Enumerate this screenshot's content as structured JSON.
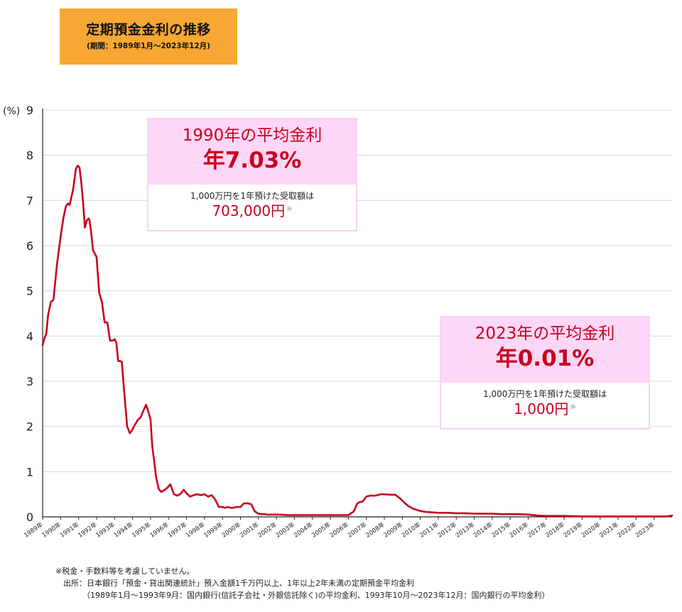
{
  "title": {
    "main": "定期預金金利の推移",
    "sub": "(期間：1989年1月～2023年12月)"
  },
  "callouts": [
    {
      "heading1": "1990年の平均金利",
      "heading2": "年7.03%",
      "line1": "1,000万円を1年預けた受取額は",
      "amount": "703,000円",
      "mark": "※"
    },
    {
      "heading1": "2023年の平均金利",
      "heading2": "年0.01%",
      "line1": "1,000万円を1年預けた受取額は",
      "amount": "1,000円",
      "mark": "※"
    }
  ],
  "footnotes": {
    "note": "※税金・手数料等を考慮していません。",
    "source": "出所：日本銀行「預金・貸出関連統計」預入金額1千万円以上、1年以上2年未満の定期預金平均金利",
    "source_detail": "（1989年1月～1993年9月：国内銀行(信託子会社・外銀信託除く)の平均金利、1993年10月～2023年12月：国内銀行の平均金利）"
  },
  "colors": {
    "line": "#c8001e",
    "title_bg": "#f7a733",
    "callout_bg": "#fdd7f7",
    "callout_text": "#c8001e"
  },
  "chart_data": {
    "type": "line",
    "ylabel": "(%)",
    "ylim": [
      0,
      9
    ],
    "yticks": [
      0,
      1,
      2,
      3,
      4,
      5,
      6,
      7,
      8,
      9
    ],
    "xlim": [
      1989.0,
      2024.0
    ],
    "x_tick_labels": [
      "1989年",
      "1990年",
      "1991年",
      "1992年",
      "1993年",
      "1994年",
      "1995年",
      "1996年",
      "1997年",
      "1998年",
      "1999年",
      "2000年",
      "2001年",
      "2002年",
      "2003年",
      "2004年",
      "2005年",
      "2006年",
      "2007年",
      "2008年",
      "2009年",
      "2010年",
      "2011年",
      "2012年",
      "2013年",
      "2014年",
      "2015年",
      "2016年",
      "2017年",
      "2018年",
      "2019年",
      "2020年",
      "2021年",
      "2022年",
      "2023年"
    ],
    "grid": "horizontal",
    "series": [
      {
        "x": [
          1989.0,
          1989.1,
          1989.2,
          1989.3,
          1989.45,
          1989.6,
          1989.8,
          1990.0,
          1990.15,
          1990.3,
          1990.42,
          1990.5,
          1990.7,
          1990.85,
          1990.95,
          1991.05,
          1991.15,
          1991.25,
          1991.35,
          1991.45,
          1991.55,
          1991.6,
          1991.7,
          1991.8,
          1992.0,
          1992.15,
          1992.3,
          1992.45,
          1992.6,
          1992.75,
          1992.9,
          1993.0,
          1993.1,
          1993.2,
          1993.3,
          1993.4,
          1993.55,
          1993.7,
          1993.85,
          1993.95,
          1994.05,
          1994.15,
          1994.3,
          1994.45,
          1994.6,
          1994.75,
          1994.9,
          1995.0,
          1995.1,
          1995.2,
          1995.3,
          1995.45,
          1995.6,
          1995.8,
          1995.95,
          1996.1,
          1996.3,
          1996.5,
          1996.7,
          1996.85,
          1997.0,
          1997.2,
          1997.4,
          1997.6,
          1997.8,
          1998.0,
          1998.2,
          1998.4,
          1998.6,
          1998.8,
          1999.0,
          1999.15,
          1999.3,
          1999.45,
          1999.6,
          1999.8,
          2000.0,
          2000.2,
          2000.4,
          2000.6,
          2000.8,
          2001.0,
          2001.2,
          2001.35,
          2001.5,
          2001.8,
          2002.2,
          2002.6,
          2003.0,
          2003.5,
          2004.0,
          2004.5,
          2005.0,
          2005.5,
          2006.0,
          2006.3,
          2006.5,
          2006.65,
          2006.8,
          2007.0,
          2007.2,
          2007.5,
          2007.8,
          2008.0,
          2008.3,
          2008.6,
          2008.9,
          2009.1,
          2009.3,
          2009.6,
          2010.0,
          2010.3,
          2010.6,
          2011.0,
          2011.5,
          2012.0,
          2012.5,
          2013.0,
          2013.5,
          2014.0,
          2014.5,
          2015.0,
          2015.5,
          2016.0,
          2016.5,
          2017.0,
          2017.5,
          2018.0,
          2019.0,
          2020.0,
          2021.0,
          2022.0,
          2022.8,
          2023.3,
          2023.7,
          2024.0
        ],
        "y": [
          3.8,
          3.95,
          4.05,
          4.45,
          4.75,
          4.8,
          5.6,
          6.2,
          6.6,
          6.88,
          6.93,
          6.9,
          7.25,
          7.7,
          7.77,
          7.73,
          7.4,
          6.95,
          6.4,
          6.55,
          6.6,
          6.58,
          6.3,
          5.9,
          5.75,
          4.95,
          4.75,
          4.3,
          4.3,
          3.9,
          3.9,
          3.93,
          3.85,
          3.45,
          3.45,
          3.43,
          2.7,
          2.0,
          1.85,
          1.9,
          1.98,
          2.05,
          2.15,
          2.2,
          2.35,
          2.48,
          2.3,
          2.15,
          1.55,
          1.25,
          0.9,
          0.62,
          0.55,
          0.6,
          0.65,
          0.72,
          0.5,
          0.47,
          0.52,
          0.6,
          0.52,
          0.45,
          0.48,
          0.5,
          0.48,
          0.5,
          0.45,
          0.48,
          0.38,
          0.22,
          0.22,
          0.2,
          0.22,
          0.2,
          0.2,
          0.22,
          0.22,
          0.3,
          0.3,
          0.28,
          0.12,
          0.07,
          0.06,
          0.06,
          0.05,
          0.05,
          0.05,
          0.04,
          0.04,
          0.04,
          0.04,
          0.04,
          0.04,
          0.04,
          0.04,
          0.12,
          0.3,
          0.33,
          0.34,
          0.45,
          0.47,
          0.47,
          0.5,
          0.5,
          0.49,
          0.49,
          0.4,
          0.32,
          0.25,
          0.18,
          0.13,
          0.11,
          0.1,
          0.09,
          0.09,
          0.08,
          0.08,
          0.07,
          0.07,
          0.07,
          0.06,
          0.06,
          0.06,
          0.05,
          0.03,
          0.02,
          0.02,
          0.02,
          0.01,
          0.01,
          0.01,
          0.01,
          0.01,
          0.01,
          0.01,
          0.03
        ]
      }
    ]
  }
}
